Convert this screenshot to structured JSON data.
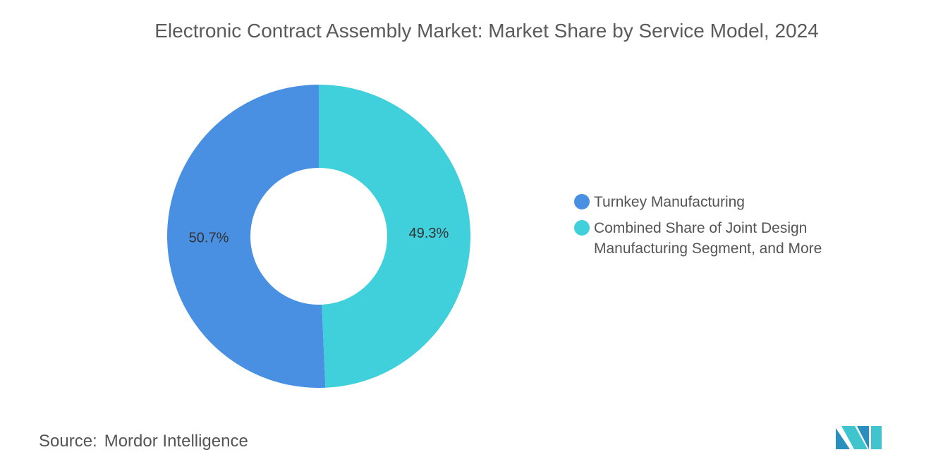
{
  "chart_data": {
    "type": "donut",
    "title": "Electronic Contract Assembly Market: Market Share by Service Model, 2024",
    "series": [
      {
        "name": "Turnkey Manufacturing",
        "color": "#4a90e2",
        "values": [
          50.7
        ],
        "value_labels": [
          "50.7%"
        ]
      },
      {
        "name": "Combined Share of Joint Design Manufacturing Segment, and More",
        "color": "#40d0db",
        "values": [
          49.3
        ],
        "value_labels": [
          "49.3%"
        ]
      }
    ],
    "legend": "right",
    "source_label": "Source:",
    "source": "Mordor Intelligence"
  }
}
